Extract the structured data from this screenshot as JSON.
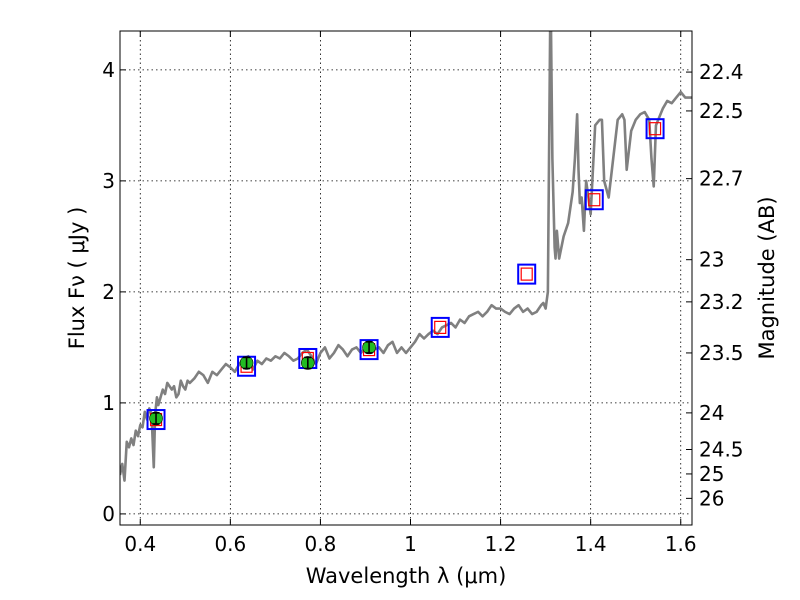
{
  "chart_data": {
    "type": "line",
    "xlabel": "Wavelength  λ (μm)",
    "ylabel": "Flux  Fν  ( μJy )",
    "ylabel_right": "Magnitude (AB)",
    "xlim": [
      0.355,
      1.625
    ],
    "ylim": [
      -0.1,
      4.35
    ],
    "grid": true,
    "x_ticks": [
      0.4,
      0.6,
      0.8,
      1.0,
      1.2,
      1.4,
      1.6
    ],
    "x_tick_labels": [
      "0.4",
      "0.6",
      "0.8",
      "1",
      "1.2",
      "1.4",
      "1.6"
    ],
    "y_ticks": [
      0,
      1,
      2,
      3,
      4
    ],
    "y_tick_labels": [
      "0",
      "1",
      "2",
      "3",
      "4"
    ],
    "right_ticks": [
      {
        "label": "22.4",
        "flux": 3.98
      },
      {
        "label": "22.5",
        "flux": 3.63
      },
      {
        "label": "22.7",
        "flux": 3.02
      },
      {
        "label": "23",
        "flux": 2.29
      },
      {
        "label": "23.2",
        "flux": 1.91
      },
      {
        "label": "23.5",
        "flux": 1.45
      },
      {
        "label": "24",
        "flux": 0.91
      },
      {
        "label": "24.5",
        "flux": 0.58
      },
      {
        "label": "25",
        "flux": 0.36
      },
      {
        "label": "26",
        "flux": 0.14
      }
    ],
    "colors": {
      "spectrum": "#808080",
      "model_box": "#0000ff",
      "observed_box": "#ff0000",
      "photometry_fill": "#22bb22",
      "grid": "#000000"
    },
    "series": [
      {
        "type": "line",
        "x": [
          0.355,
          0.36,
          0.365,
          0.37,
          0.375,
          0.38,
          0.385,
          0.39,
          0.395,
          0.4,
          0.405,
          0.41,
          0.415,
          0.42,
          0.425,
          0.43,
          0.433,
          0.437,
          0.44,
          0.445,
          0.45,
          0.455,
          0.46,
          0.465,
          0.47,
          0.475,
          0.48,
          0.485,
          0.49,
          0.495,
          0.5,
          0.505,
          0.51,
          0.515,
          0.52,
          0.53,
          0.54,
          0.55,
          0.56,
          0.57,
          0.58,
          0.59,
          0.6,
          0.61,
          0.62,
          0.63,
          0.64,
          0.65,
          0.66,
          0.67,
          0.68,
          0.69,
          0.7,
          0.71,
          0.72,
          0.73,
          0.74,
          0.75,
          0.76,
          0.77,
          0.78,
          0.79,
          0.8,
          0.81,
          0.82,
          0.83,
          0.84,
          0.85,
          0.86,
          0.87,
          0.88,
          0.89,
          0.9,
          0.91,
          0.92,
          0.93,
          0.94,
          0.95,
          0.96,
          0.97,
          0.98,
          0.99,
          1.0,
          1.01,
          1.02,
          1.03,
          1.04,
          1.05,
          1.06,
          1.07,
          1.08,
          1.09,
          1.1,
          1.11,
          1.12,
          1.13,
          1.14,
          1.15,
          1.16,
          1.17,
          1.18,
          1.19,
          1.2,
          1.21,
          1.22,
          1.23,
          1.24,
          1.25,
          1.26,
          1.27,
          1.28,
          1.29,
          1.295,
          1.3,
          1.305,
          1.31,
          1.312,
          1.315,
          1.32,
          1.322,
          1.325,
          1.33,
          1.34,
          1.35,
          1.36,
          1.365,
          1.37,
          1.373,
          1.376,
          1.38,
          1.385,
          1.39,
          1.4,
          1.41,
          1.42,
          1.425,
          1.43,
          1.44,
          1.45,
          1.46,
          1.47,
          1.475,
          1.48,
          1.49,
          1.5,
          1.51,
          1.52,
          1.53,
          1.535,
          1.54,
          1.545,
          1.55,
          1.56,
          1.57,
          1.58,
          1.59,
          1.6,
          1.61,
          1.625
        ],
        "y": [
          0.35,
          0.45,
          0.3,
          0.65,
          0.6,
          0.68,
          0.62,
          0.75,
          0.7,
          0.8,
          0.78,
          0.92,
          0.85,
          0.95,
          0.9,
          0.42,
          0.9,
          1.05,
          0.98,
          1.05,
          1.12,
          1.08,
          1.18,
          1.15,
          1.12,
          1.15,
          1.05,
          1.08,
          1.2,
          1.15,
          1.12,
          1.2,
          1.18,
          1.2,
          1.22,
          1.28,
          1.25,
          1.18,
          1.28,
          1.25,
          1.3,
          1.35,
          1.32,
          1.28,
          1.35,
          1.4,
          1.42,
          1.3,
          1.38,
          1.35,
          1.4,
          1.38,
          1.42,
          1.4,
          1.45,
          1.42,
          1.38,
          1.4,
          1.45,
          1.48,
          1.42,
          1.35,
          1.45,
          1.5,
          1.4,
          1.45,
          1.52,
          1.48,
          1.42,
          1.48,
          1.5,
          1.45,
          1.5,
          1.55,
          1.48,
          1.5,
          1.45,
          1.52,
          1.55,
          1.45,
          1.5,
          1.45,
          1.5,
          1.55,
          1.62,
          1.58,
          1.62,
          1.65,
          1.62,
          1.68,
          1.7,
          1.72,
          1.68,
          1.75,
          1.72,
          1.78,
          1.8,
          1.82,
          1.78,
          1.82,
          1.88,
          1.85,
          1.85,
          1.82,
          1.8,
          1.85,
          1.88,
          1.82,
          1.85,
          1.8,
          1.82,
          1.88,
          1.9,
          1.85,
          2.0,
          4.35,
          4.35,
          3.2,
          2.4,
          2.3,
          2.55,
          2.3,
          2.5,
          2.62,
          2.9,
          3.2,
          3.6,
          3.1,
          2.8,
          2.85,
          2.55,
          3.0,
          2.7,
          3.5,
          3.55,
          3.55,
          3.0,
          2.85,
          3.2,
          3.55,
          3.6,
          3.55,
          3.1,
          3.45,
          3.55,
          3.6,
          3.62,
          3.55,
          3.2,
          2.95,
          3.5,
          3.55,
          3.65,
          3.72,
          3.7,
          3.75,
          3.8,
          3.75,
          3.75
        ]
      },
      {
        "name": "",
        "type": "model-boxes",
        "x": [
          0.435,
          0.636,
          0.772,
          0.908,
          1.066,
          1.258,
          1.408,
          1.543
        ],
        "y": [
          0.85,
          1.33,
          1.4,
          1.48,
          1.68,
          2.16,
          2.83,
          3.47
        ]
      },
      {
        "name": "",
        "type": "observed-boxes",
        "x": [
          0.435,
          0.636,
          0.772,
          0.908,
          1.066,
          1.258,
          1.408,
          1.543
        ],
        "y": [
          0.85,
          1.33,
          1.4,
          1.48,
          1.68,
          2.16,
          2.83,
          3.47
        ]
      },
      {
        "name": "",
        "type": "photometry",
        "x": [
          0.435,
          0.636,
          0.772,
          0.908
        ],
        "y": [
          0.86,
          1.36,
          1.36,
          1.5
        ],
        "err": [
          0.05,
          0.05,
          0.05,
          0.05
        ]
      }
    ]
  }
}
